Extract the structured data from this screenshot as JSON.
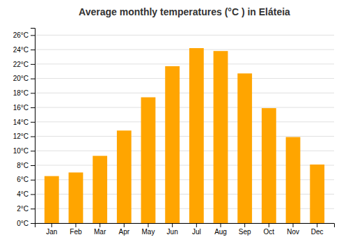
{
  "chart_data": {
    "type": "bar",
    "title": "Average monthly temperatures (°C ) in Eláteia",
    "categories": [
      "Jan",
      "Feb",
      "Mar",
      "Apr",
      "May",
      "Jun",
      "Jul",
      "Aug",
      "Sep",
      "Oct",
      "Nov",
      "Dec"
    ],
    "values": [
      6.5,
      7.0,
      9.3,
      12.8,
      17.4,
      21.7,
      24.2,
      23.8,
      20.7,
      15.9,
      11.9,
      8.1
    ],
    "color": "#FFA500",
    "ylim": [
      0,
      27
    ],
    "yticks": [
      {
        "value": 0,
        "label": "0°C"
      },
      {
        "value": 2,
        "label": "2°C"
      },
      {
        "value": 4,
        "label": "4°C"
      },
      {
        "value": 6,
        "label": "6°C"
      },
      {
        "value": 8,
        "label": "8°C"
      },
      {
        "value": 10,
        "label": "10°C"
      },
      {
        "value": 12,
        "label": "12°C"
      },
      {
        "value": 14,
        "label": "14°C"
      },
      {
        "value": 16,
        "label": "16°C"
      },
      {
        "value": 18,
        "label": "18°C"
      },
      {
        "value": 20,
        "label": "20°C"
      },
      {
        "value": 22,
        "label": "22°C"
      },
      {
        "value": 24,
        "label": "24°C"
      },
      {
        "value": 26,
        "label": "26°C"
      }
    ],
    "grid": true
  }
}
